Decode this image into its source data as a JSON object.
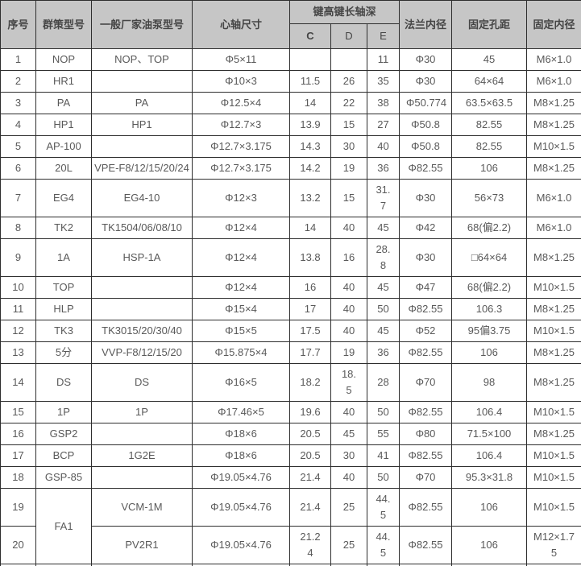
{
  "colors": {
    "header_bg": "#c6c6c6",
    "border": "#2e2e2e",
    "body_text": "#595959",
    "header_text": "#454545",
    "row_bg": "#ffffff"
  },
  "table": {
    "header": {
      "col_serial": "序号",
      "col_model": "群策型号",
      "col_mfr_model": "一般厂家油泵型号",
      "col_spindle": "心轴尺寸",
      "col_key_group": "键高键长轴深",
      "col_c": "C",
      "col_d": "D",
      "col_e": "E",
      "col_flange": "法兰内径",
      "col_hole_pitch": "固定孔距",
      "col_fixed_id": "固定内径"
    },
    "rows": [
      {
        "no": "1",
        "model": "NOP",
        "mfr": "NOP、TOP",
        "spindle": "Φ5×11",
        "c": "",
        "d": "",
        "e": "11",
        "flange": "Φ30",
        "holes": "45",
        "inner": "M6×1.0"
      },
      {
        "no": "2",
        "model": "HR1",
        "mfr": "",
        "spindle": "Φ10×3",
        "c": "11.5",
        "d": "26",
        "e": "35",
        "flange": "Φ30",
        "holes": "64×64",
        "inner": "M6×1.0"
      },
      {
        "no": "3",
        "model": "PA",
        "mfr": "PA",
        "spindle": "Φ12.5×4",
        "c": "14",
        "d": "22",
        "e": "38",
        "flange": "Φ50.774",
        "holes": "63.5×63.5",
        "inner": "M8×1.25"
      },
      {
        "no": "4",
        "model": "HP1",
        "mfr": "HP1",
        "spindle": "Φ12.7×3",
        "c": "13.9",
        "d": "15",
        "e": "27",
        "flange": "Φ50.8",
        "holes": "82.55",
        "inner": "M8×1.25"
      },
      {
        "no": "5",
        "model": "AP-100",
        "mfr": "",
        "spindle": "Φ12.7×3.175",
        "c": "14.3",
        "d": "30",
        "e": "40",
        "flange": "Φ50.8",
        "holes": "82.55",
        "inner": "M10×1.5"
      },
      {
        "no": "6",
        "model": "20L",
        "mfr": "VPE-F8/12/15/20/24",
        "spindle": "Φ12.7×3.175",
        "c": "14.2",
        "d": "19",
        "e": "36",
        "flange": "Φ82.55",
        "holes": "106",
        "inner": "M8×1.25"
      },
      {
        "no": "7",
        "model": "EG4",
        "mfr": "EG4-10",
        "spindle": "Φ12×3",
        "c": "13.2",
        "d": "15",
        "e": "31.7",
        "flange": "Φ30",
        "holes": "56×73",
        "inner": "M6×1.0"
      },
      {
        "no": "8",
        "model": "TK2",
        "mfr": "TK1504/06/08/10",
        "spindle": "Φ12×4",
        "c": "14",
        "d": "40",
        "e": "45",
        "flange": "Φ42",
        "holes": "68(偏2.2)",
        "inner": "M6×1.0"
      },
      {
        "no": "9",
        "model": "1A",
        "mfr": "HSP-1A",
        "spindle": "Φ12×4",
        "c": "13.8",
        "d": "16",
        "e": "28.8",
        "flange": "Φ30",
        "holes": "□64×64",
        "inner": "M8×1.25"
      },
      {
        "no": "10",
        "model": "TOP",
        "mfr": "",
        "spindle": "Φ12×4",
        "c": "16",
        "d": "40",
        "e": "45",
        "flange": "Φ47",
        "holes": "68(偏2.2)",
        "inner": "M10×1.5"
      },
      {
        "no": "11",
        "model": "HLP",
        "mfr": "",
        "spindle": "Φ15×4",
        "c": "17",
        "d": "40",
        "e": "50",
        "flange": "Φ82.55",
        "holes": "106.3",
        "inner": "M8×1.25"
      },
      {
        "no": "12",
        "model": "TK3",
        "mfr": "TK3015/20/30/40",
        "spindle": "Φ15×5",
        "c": "17.5",
        "d": "40",
        "e": "45",
        "flange": "Φ52",
        "holes": "95偏3.75",
        "inner": "M10×1.5"
      },
      {
        "no": "13",
        "model": "5分",
        "mfr": "VVP-F8/12/15/20",
        "spindle": "Φ15.875×4",
        "c": "17.7",
        "d": "19",
        "e": "36",
        "flange": "Φ82.55",
        "holes": "106",
        "inner": "M8×1.25"
      },
      {
        "no": "14",
        "model": "DS",
        "mfr": "DS",
        "spindle": "Φ16×5",
        "c": "18.2",
        "d": "18.5",
        "e": "28",
        "flange": "Φ70",
        "holes": "98",
        "inner": "M8×1.25"
      },
      {
        "no": "15",
        "model": "1P",
        "mfr": "1P",
        "spindle": "Φ17.46×5",
        "c": "19.6",
        "d": "40",
        "e": "50",
        "flange": "Φ82.55",
        "holes": "106.4",
        "inner": "M10×1.5"
      },
      {
        "no": "16",
        "model": "GSP2",
        "mfr": "",
        "spindle": "Φ18×6",
        "c": "20.5",
        "d": "45",
        "e": "55",
        "flange": "Φ80",
        "holes": "71.5×100",
        "inner": "M8×1.25"
      },
      {
        "no": "17",
        "model": "BCP",
        "mfr": "1G2E",
        "spindle": "Φ18×6",
        "c": "20.5",
        "d": "30",
        "e": "41",
        "flange": "Φ82.55",
        "holes": "106.4",
        "inner": "M10×1.5"
      },
      {
        "no": "18",
        "model": "GSP-85",
        "mfr": "",
        "spindle": "Φ19.05×4.76",
        "c": "21.4",
        "d": "40",
        "e": "50",
        "flange": "Φ70",
        "holes": "95.3×31.8",
        "inner": "M10×1.5"
      },
      {
        "no": "19",
        "model": "FA1",
        "model_rowspan": 2,
        "mfr": "VCM-1M",
        "spindle": "Φ19.05×4.76",
        "c": "21.4",
        "d": "25",
        "e": "44.5",
        "flange": "Φ82.55",
        "holes": "106",
        "inner": "M10×1.5"
      },
      {
        "no": "20",
        "model": null,
        "mfr": "PV2R1",
        "spindle": "Φ19.05×4.76",
        "c": "21.24",
        "d": "25",
        "e": "44.5",
        "flange": "Φ82.55",
        "holes": "106",
        "inner": "M12×1.75"
      }
    ]
  }
}
